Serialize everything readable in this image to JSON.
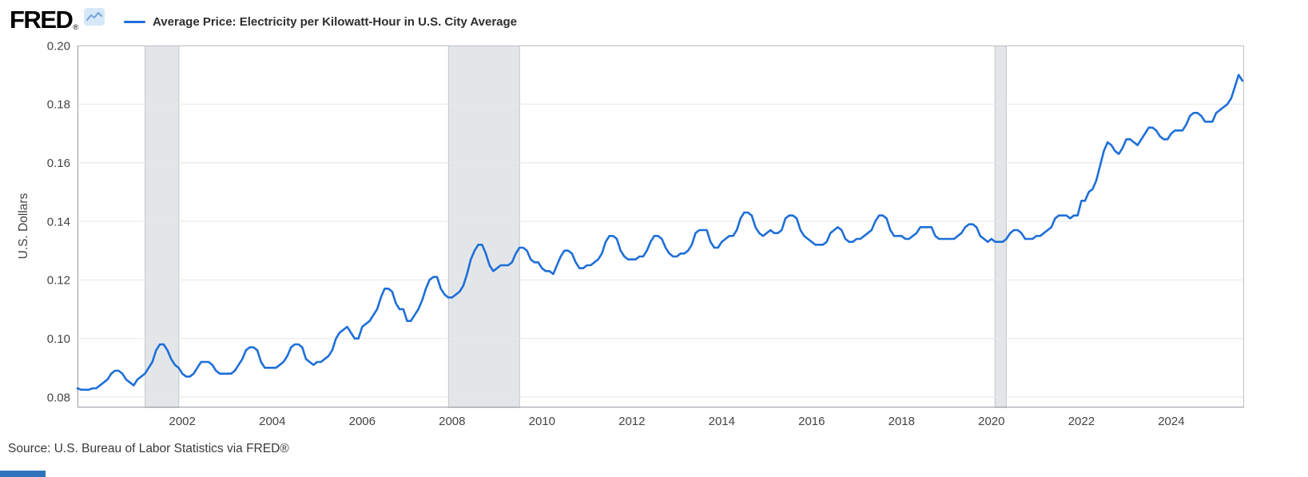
{
  "header": {
    "logo_text": "FRED",
    "registered_mark": "®",
    "legend_label": "Average Price: Electricity per Kilowatt-Hour in U.S. City Average"
  },
  "footer": {
    "source_text": "Source: U.S. Bureau of Labor Statistics via FRED®"
  },
  "colors": {
    "partial_strip": "#2e74bd"
  },
  "chart_data": {
    "type": "line",
    "title": "Average Price: Electricity per Kilowatt-Hour in U.S. City Average",
    "xlabel": "",
    "ylabel": "U.S. Dollars",
    "units": "U.S. Dollars",
    "frequency": "monthly",
    "grid": "horizontal-only",
    "legend_position": "top",
    "line_color": "#1e6fd8",
    "recession_color": "#e3e6e9",
    "band_edge_color": "#c0c5c9",
    "xlim": [
      1999.667,
      2025.62
    ],
    "ylim": [
      0.07645,
      0.2
    ],
    "x_ticks": [
      2002,
      2004,
      2006,
      2008,
      2010,
      2012,
      2014,
      2016,
      2018,
      2020,
      2022,
      2024
    ],
    "y_ticks": [
      0.08,
      0.1,
      0.12,
      0.14,
      0.16,
      0.18,
      0.2
    ],
    "recession_bands": [
      [
        2001.17,
        2001.92
      ],
      [
        2007.92,
        2009.5
      ],
      [
        2020.08,
        2020.33
      ]
    ],
    "series": [
      {
        "name": "Average Price: Electricity per Kilowatt-Hour in U.S. City Average",
        "start": "1999-09",
        "values": [
          0.083,
          0.0825,
          0.0825,
          0.0825,
          0.083,
          0.083,
          0.084,
          0.085,
          0.086,
          0.088,
          0.089,
          0.089,
          0.088,
          0.086,
          0.085,
          0.084,
          0.086,
          0.087,
          0.088,
          0.09,
          0.092,
          0.096,
          0.098,
          0.098,
          0.096,
          0.093,
          0.091,
          0.09,
          0.088,
          0.087,
          0.087,
          0.088,
          0.09,
          0.092,
          0.092,
          0.092,
          0.091,
          0.089,
          0.088,
          0.088,
          0.088,
          0.088,
          0.089,
          0.091,
          0.093,
          0.096,
          0.097,
          0.097,
          0.096,
          0.092,
          0.09,
          0.09,
          0.09,
          0.09,
          0.091,
          0.092,
          0.094,
          0.097,
          0.098,
          0.098,
          0.097,
          0.093,
          0.092,
          0.091,
          0.092,
          0.092,
          0.093,
          0.094,
          0.096,
          0.1,
          0.102,
          0.103,
          0.104,
          0.102,
          0.1,
          0.1,
          0.104,
          0.105,
          0.106,
          0.108,
          0.11,
          0.114,
          0.117,
          0.117,
          0.116,
          0.112,
          0.11,
          0.11,
          0.106,
          0.106,
          0.108,
          0.11,
          0.113,
          0.117,
          0.12,
          0.121,
          0.121,
          0.117,
          0.115,
          0.114,
          0.114,
          0.115,
          0.116,
          0.118,
          0.122,
          0.127,
          0.13,
          0.132,
          0.132,
          0.129,
          0.125,
          0.123,
          0.124,
          0.125,
          0.125,
          0.125,
          0.126,
          0.129,
          0.131,
          0.131,
          0.13,
          0.127,
          0.126,
          0.126,
          0.124,
          0.123,
          0.123,
          0.122,
          0.125,
          0.128,
          0.13,
          0.13,
          0.129,
          0.126,
          0.124,
          0.124,
          0.125,
          0.125,
          0.126,
          0.127,
          0.129,
          0.133,
          0.135,
          0.135,
          0.134,
          0.13,
          0.128,
          0.127,
          0.127,
          0.127,
          0.128,
          0.128,
          0.13,
          0.133,
          0.135,
          0.135,
          0.134,
          0.131,
          0.129,
          0.128,
          0.128,
          0.129,
          0.129,
          0.13,
          0.132,
          0.136,
          0.137,
          0.137,
          0.137,
          0.133,
          0.131,
          0.131,
          0.133,
          0.134,
          0.135,
          0.135,
          0.137,
          0.141,
          0.143,
          0.143,
          0.142,
          0.138,
          0.136,
          0.135,
          0.136,
          0.137,
          0.136,
          0.136,
          0.137,
          0.141,
          0.142,
          0.142,
          0.141,
          0.137,
          0.135,
          0.134,
          0.133,
          0.132,
          0.132,
          0.132,
          0.133,
          0.136,
          0.137,
          0.138,
          0.137,
          0.134,
          0.133,
          0.133,
          0.134,
          0.134,
          0.135,
          0.136,
          0.137,
          0.14,
          0.142,
          0.142,
          0.141,
          0.137,
          0.135,
          0.135,
          0.135,
          0.134,
          0.134,
          0.135,
          0.136,
          0.138,
          0.138,
          0.138,
          0.138,
          0.135,
          0.134,
          0.134,
          0.134,
          0.134,
          0.134,
          0.135,
          0.136,
          0.138,
          0.139,
          0.139,
          0.138,
          0.135,
          0.134,
          0.133,
          0.134,
          0.133,
          0.133,
          0.133,
          0.134,
          0.136,
          0.137,
          0.137,
          0.136,
          0.134,
          0.134,
          0.134,
          0.135,
          0.135,
          0.136,
          0.137,
          0.138,
          0.141,
          0.142,
          0.142,
          0.142,
          0.141,
          0.142,
          0.142,
          0.147,
          0.147,
          0.15,
          0.151,
          0.154,
          0.159,
          0.164,
          0.167,
          0.166,
          0.164,
          0.163,
          0.165,
          0.168,
          0.168,
          0.167,
          0.166,
          0.168,
          0.17,
          0.172,
          0.172,
          0.171,
          0.169,
          0.168,
          0.168,
          0.17,
          0.171,
          0.171,
          0.171,
          0.173,
          0.176,
          0.177,
          0.177,
          0.176,
          0.174,
          0.174,
          0.174,
          0.177,
          0.178,
          0.179,
          0.18,
          0.182,
          0.186,
          0.19,
          0.188
        ]
      }
    ]
  }
}
